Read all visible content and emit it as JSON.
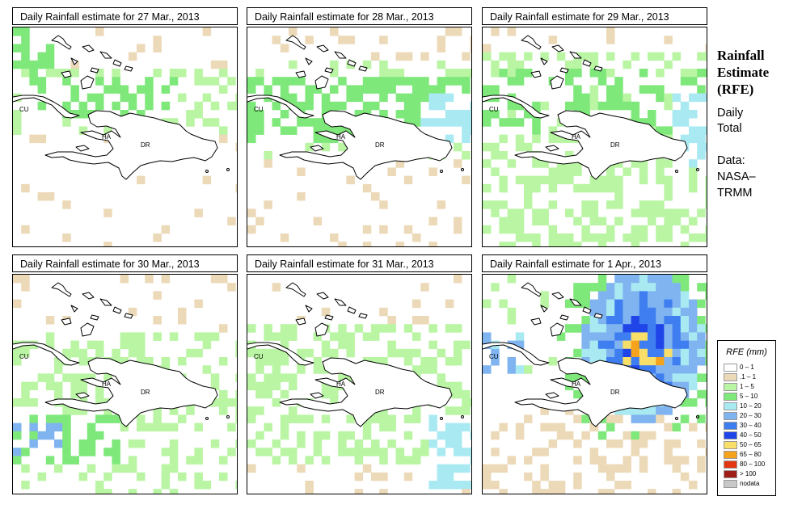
{
  "panels": [
    {
      "title": "Daily Rainfall estimate for  27 Mar., 2013",
      "day": 0
    },
    {
      "title": "Daily Rainfall estimate for  28 Mar., 2013",
      "day": 1
    },
    {
      "title": "Daily Rainfall estimate for  29 Mar., 2013",
      "day": 2
    },
    {
      "title": "Daily Rainfall estimate for  30 Mar., 2013",
      "day": 3
    },
    {
      "title": "Daily Rainfall estimate for  31 Mar., 2013",
      "day": 4
    },
    {
      "title": "Daily Rainfall estimate for  1 Apr., 2013",
      "day": 5
    }
  ],
  "map_labels": {
    "cuba": "CU",
    "haiti": "HA",
    "dominican_republic": "DR"
  },
  "sidebar": {
    "heading_lines": [
      "Rainfall",
      "Estimate",
      "(RFE)"
    ],
    "period_lines": [
      "Daily",
      "Total"
    ],
    "source_lines": [
      "Data:",
      "NASA–",
      "TRMM"
    ]
  },
  "legend": {
    "title": "RFE (mm)",
    "classes": [
      {
        "label": "0 – 1",
        "color": "#ffffff"
      },
      {
        "label": ".1 – 1",
        "color": "#ecd9b8"
      },
      {
        "label": "1 – 5",
        "color": "#b9f5a3"
      },
      {
        "label": "5 – 10",
        "color": "#7ee87a"
      },
      {
        "label": "10 – 20",
        "color": "#a9e9f2"
      },
      {
        "label": "20 – 30",
        "color": "#7fb4f0"
      },
      {
        "label": "30 – 40",
        "color": "#3f7ef0"
      },
      {
        "label": "40 – 50",
        "color": "#1f45e8"
      },
      {
        "label": "50 – 65",
        "color": "#f7df6a"
      },
      {
        "label": "65 – 80",
        "color": "#f5a21c"
      },
      {
        "label": "80 – 100",
        "color": "#e33612"
      },
      {
        "label": "> 100",
        "color": "#a01e18"
      },
      {
        "label": "nodata",
        "color": "#c8c8c8"
      }
    ]
  }
}
